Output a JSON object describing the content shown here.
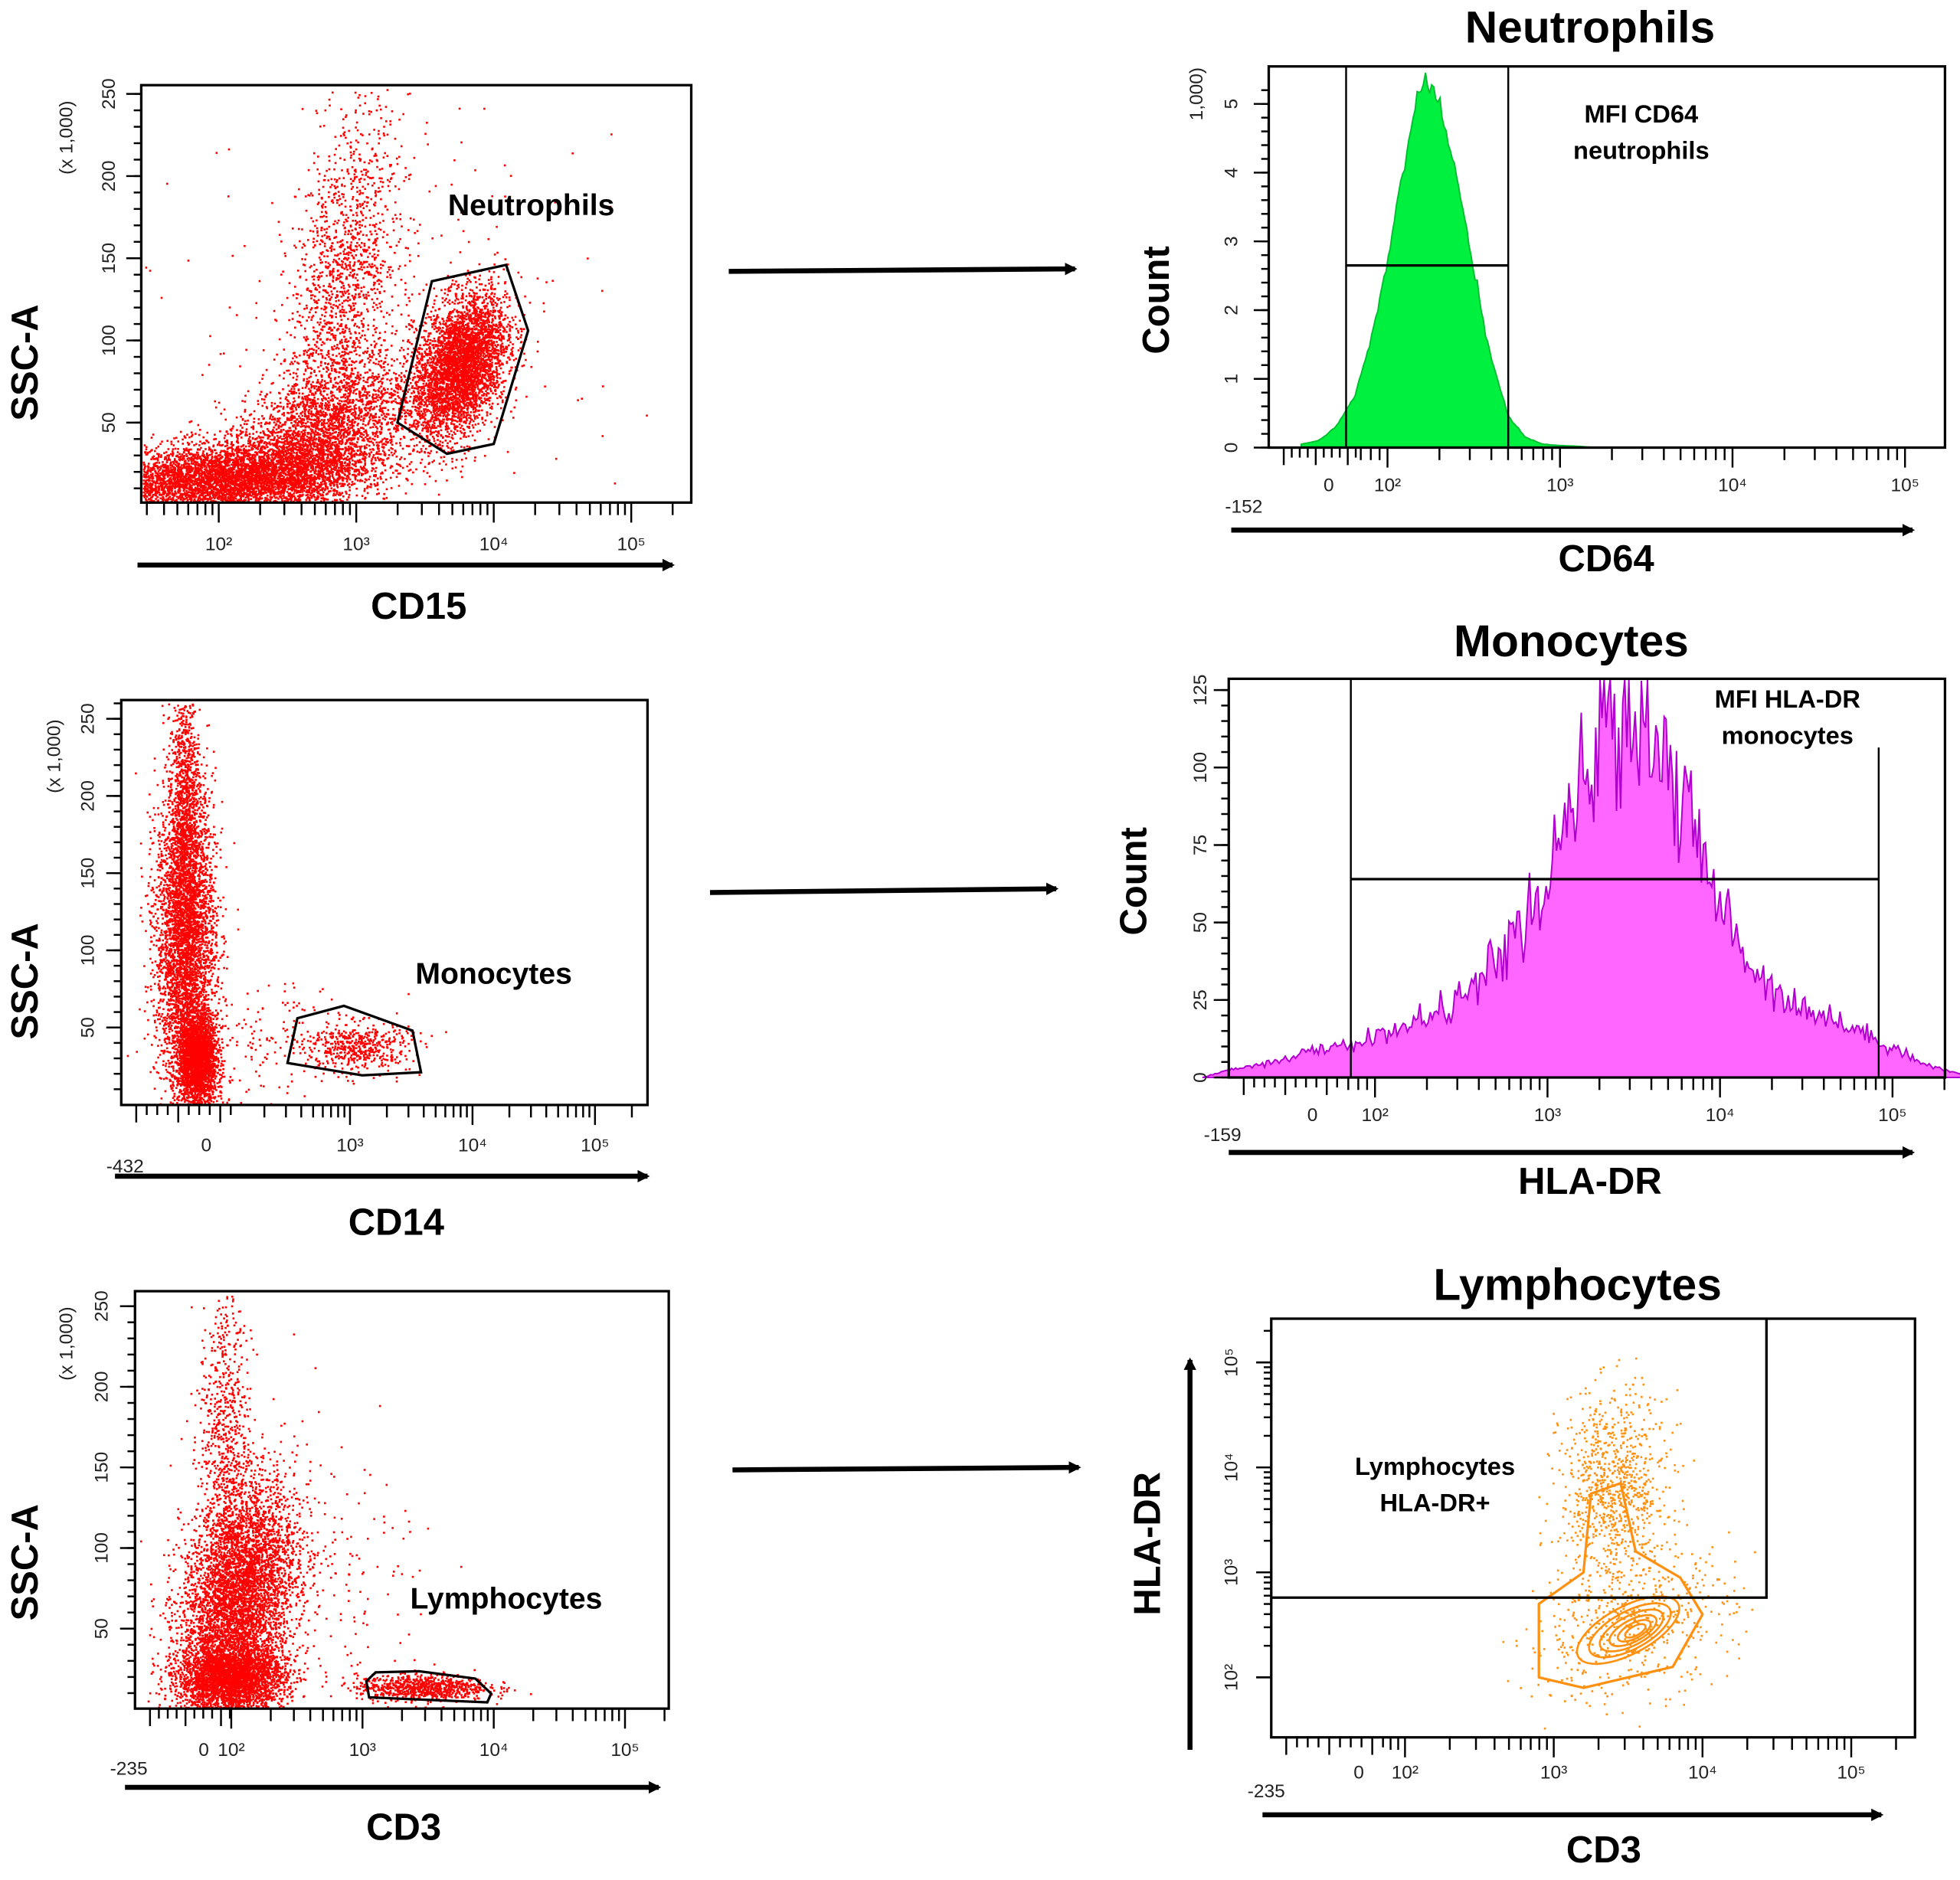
{
  "chart_data": [
    {
      "type": "scatter",
      "xlabel": "CD15",
      "ylabel": "SSC-A",
      "y_multiplier": "(x 1,000)",
      "color": "#ff0000",
      "x_scale": "log10 (decades)",
      "yticks": [
        {
          "label": "50",
          "value": 50
        },
        {
          "label": "100",
          "value": 100
        },
        {
          "label": "150",
          "value": 150
        },
        {
          "label": "200",
          "value": 200
        },
        {
          "label": "250",
          "value": 250
        }
      ],
      "xticks": [
        {
          "label": "10²",
          "value": 2
        },
        {
          "label": "10³",
          "value": 3
        },
        {
          "label": "10⁴",
          "value": 4
        },
        {
          "label": "10⁵",
          "value": 5
        }
      ],
      "gate_label": "Neutrophils",
      "gate": [
        [
          3.3,
          50
        ],
        [
          3.55,
          136
        ],
        [
          4.09,
          146
        ],
        [
          4.25,
          106
        ],
        [
          4.0,
          37
        ],
        [
          3.66,
          31
        ]
      ],
      "populations": [
        {
          "cx": 2.0,
          "cy": 15,
          "sx": 0.5,
          "sy": 12,
          "rho": 0.3,
          "n": 5000
        },
        {
          "cx": 2.7,
          "cy": 40,
          "sx": 0.35,
          "sy": 25,
          "rho": 0.5,
          "n": 3000
        },
        {
          "cx": 2.9,
          "cy": 130,
          "sx": 0.2,
          "sy": 55,
          "rho": 0.4,
          "n": 1500
        },
        {
          "cx": 3.75,
          "cy": 85,
          "sx": 0.17,
          "sy": 22,
          "rho": 0.4,
          "n": 4000
        },
        {
          "cx": 3.2,
          "cy": 100,
          "sx": 0.7,
          "sy": 60,
          "rho": 0,
          "n": 300
        }
      ]
    },
    {
      "type": "area",
      "title": "Neutrophils",
      "xlabel": "CD64",
      "ylabel": "Count",
      "y_multiplier": "1,000)",
      "color": "#00f040",
      "stroke": "#00c030",
      "yticks": [
        {
          "label": "0",
          "value": 0
        },
        {
          "label": "1",
          "value": 1
        },
        {
          "label": "2",
          "value": 2
        },
        {
          "label": "3",
          "value": 3
        },
        {
          "label": "4",
          "value": 4
        },
        {
          "label": "5",
          "value": 5
        }
      ],
      "xticks": [
        {
          "label": "10²",
          "value": 2
        },
        {
          "label": "10³",
          "value": 3
        },
        {
          "label": "10⁴",
          "value": 4
        },
        {
          "label": "10⁵",
          "value": 5
        }
      ],
      "x_min_label": "-152",
      "x_zero_label": "0",
      "annotation": [
        "MFI CD64",
        "neutrophils"
      ],
      "bins_x": [
        1.5,
        1.6,
        1.7,
        1.8,
        1.9,
        2.0,
        2.1,
        2.2,
        2.3,
        2.4,
        2.5,
        2.6,
        2.7,
        2.8,
        2.9,
        3.0,
        3.1,
        3.2
      ],
      "bins_y": [
        0.05,
        0.1,
        0.3,
        0.7,
        1.5,
        2.7,
        4.2,
        5.4,
        5.0,
        3.9,
        2.6,
        1.3,
        0.45,
        0.15,
        0.05,
        0.03,
        0.02,
        0.0
      ],
      "noise": 0.02,
      "gate_x": [
        1.76,
        2.7
      ],
      "gate_level": 2.65
    },
    {
      "type": "scatter",
      "xlabel": "CD14",
      "ylabel": "SSC-A",
      "y_multiplier": "(x 1,000)",
      "color": "#ff0000",
      "yticks": [
        {
          "label": "50",
          "value": 50
        },
        {
          "label": "100",
          "value": 100
        },
        {
          "label": "150",
          "value": 150
        },
        {
          "label": "200",
          "value": 200
        },
        {
          "label": "250",
          "value": 250
        }
      ],
      "xticks": [
        {
          "label": "10³",
          "value": 3
        },
        {
          "label": "10⁴",
          "value": 4
        },
        {
          "label": "10⁵",
          "value": 5
        }
      ],
      "x_min_label": "-432",
      "x_zero_label": "0",
      "gate_label": "Monocytes",
      "gate": [
        [
          2.49,
          27
        ],
        [
          2.57,
          56
        ],
        [
          2.95,
          64
        ],
        [
          3.51,
          48
        ],
        [
          3.58,
          21
        ],
        [
          3.1,
          19
        ]
      ],
      "populations": [
        {
          "cx": 1.65,
          "cy": 110,
          "sx": 0.12,
          "sy": 50,
          "rho": 0,
          "n": 4000
        },
        {
          "cx": 1.75,
          "cy": 30,
          "sx": 0.08,
          "sy": 15,
          "rho": 0,
          "n": 2500
        },
        {
          "cx": 1.65,
          "cy": 200,
          "sx": 0.06,
          "sy": 40,
          "rho": 0,
          "n": 800
        },
        {
          "cx": 3.05,
          "cy": 38,
          "sx": 0.22,
          "sy": 8,
          "rho": 0,
          "n": 500
        },
        {
          "cx": 2.3,
          "cy": 40,
          "sx": 0.4,
          "sy": 20,
          "rho": 0,
          "n": 150
        }
      ]
    },
    {
      "type": "area",
      "title": "Monocytes",
      "xlabel": "HLA-DR",
      "ylabel": "Count",
      "color": "#ff66ff",
      "stroke": "#b000d0",
      "yticks": [
        {
          "label": "0",
          "value": 0
        },
        {
          "label": "25",
          "value": 25
        },
        {
          "label": "50",
          "value": 50
        },
        {
          "label": "75",
          "value": 75
        },
        {
          "label": "100",
          "value": 100
        },
        {
          "label": "125",
          "value": 125
        }
      ],
      "xticks": [
        {
          "label": "10²",
          "value": 2
        },
        {
          "label": "10³",
          "value": 3
        },
        {
          "label": "10⁴",
          "value": 4
        },
        {
          "label": "10⁵",
          "value": 5
        }
      ],
      "x_min_label": "-159",
      "x_zero_label": "0",
      "annotation": [
        "MFI HLA-DR",
        "monocytes"
      ],
      "bins_x": [
        1.0,
        1.2,
        1.4,
        1.6,
        1.8,
        2.0,
        2.2,
        2.4,
        2.6,
        2.8,
        3.0,
        3.2,
        3.4,
        3.6,
        3.8,
        4.0,
        4.2,
        4.4,
        4.6,
        4.8,
        5.0,
        5.2,
        5.4
      ],
      "bins_y": [
        0,
        3,
        5,
        8,
        10,
        13,
        17,
        22,
        30,
        45,
        60,
        95,
        118,
        115,
        85,
        55,
        35,
        25,
        20,
        15,
        10,
        4,
        1
      ],
      "noise": 0.12,
      "gate_x": [
        1.86,
        4.92
      ],
      "gate_level": 64
    },
    {
      "type": "scatter",
      "xlabel": "CD3",
      "ylabel": "SSC-A",
      "y_multiplier": "(x 1,000)",
      "color": "#ff0000",
      "yticks": [
        {
          "label": "50",
          "value": 50
        },
        {
          "label": "100",
          "value": 100
        },
        {
          "label": "150",
          "value": 150
        },
        {
          "label": "200",
          "value": 200
        },
        {
          "label": "250",
          "value": 250
        }
      ],
      "xticks": [
        {
          "label": "10²",
          "value": 2
        },
        {
          "label": "10³",
          "value": 3
        },
        {
          "label": "10⁴",
          "value": 4
        },
        {
          "label": "10⁵",
          "value": 5
        }
      ],
      "x_min_label": "-235",
      "x_zero_label": "0",
      "gate_label": "Lymphocytes",
      "gate": [
        [
          3.03,
          17.4
        ],
        [
          3.1,
          22.9
        ],
        [
          3.43,
          23.6
        ],
        [
          3.86,
          19
        ],
        [
          3.98,
          9.7
        ],
        [
          3.95,
          4.3
        ],
        [
          3.05,
          7.4
        ]
      ],
      "populations": [
        {
          "cx": 2.05,
          "cy": 70,
          "sx": 0.22,
          "sy": 35,
          "rho": 0.3,
          "n": 5000
        },
        {
          "cx": 2.0,
          "cy": 20,
          "sx": 0.2,
          "sy": 10,
          "rho": 0,
          "n": 3000
        },
        {
          "cx": 1.95,
          "cy": 170,
          "sx": 0.1,
          "sy": 50,
          "rho": 0,
          "n": 700
        },
        {
          "cx": 3.45,
          "cy": 14,
          "sx": 0.25,
          "sy": 4,
          "rho": 0,
          "n": 800
        },
        {
          "cx": 2.8,
          "cy": 80,
          "sx": 0.4,
          "sy": 40,
          "rho": 0,
          "n": 150
        }
      ]
    },
    {
      "type": "contour",
      "title": "Lymphocytes",
      "xlabel": "CD3",
      "ylabel": "HLA-DR",
      "color": "#ff9010",
      "xticks": [
        {
          "label": "10²",
          "value": 2
        },
        {
          "label": "10³",
          "value": 3
        },
        {
          "label": "10⁴",
          "value": 4
        },
        {
          "label": "10⁵",
          "value": 5
        }
      ],
      "yticks": [
        {
          "label": "10²",
          "value": 2
        },
        {
          "label": "10³",
          "value": 3
        },
        {
          "label": "10⁴",
          "value": 4
        },
        {
          "label": "10⁵",
          "value": 5
        }
      ],
      "x_min_label": "-235",
      "x_zero_label": "0",
      "annotation": [
        "Lymphocytes",
        "HLA-DR+"
      ],
      "gate_x": 4.43,
      "gate_y": 2.76,
      "center": [
        3.5,
        2.45
      ],
      "contour_levels": [
        1.0,
        0.8,
        0.62,
        0.46,
        0.32,
        0.2
      ],
      "spread": [
        0.38,
        0.3
      ],
      "outer_contour": [
        [
          2.9,
          2.0
        ],
        [
          2.9,
          2.7
        ],
        [
          3.2,
          3.0
        ],
        [
          3.25,
          3.75
        ],
        [
          3.45,
          3.85
        ],
        [
          3.55,
          3.2
        ],
        [
          3.85,
          2.95
        ],
        [
          4.0,
          2.6
        ],
        [
          3.8,
          2.1
        ],
        [
          3.2,
          1.9
        ]
      ],
      "populations": [
        {
          "cx": 3.4,
          "cy": 3.8,
          "sx": 0.18,
          "sy": 0.45,
          "rho": 0,
          "n": 900
        },
        {
          "cx": 3.5,
          "cy": 2.5,
          "sx": 0.35,
          "sy": 0.35,
          "rho": 0.3,
          "n": 500
        }
      ]
    }
  ]
}
